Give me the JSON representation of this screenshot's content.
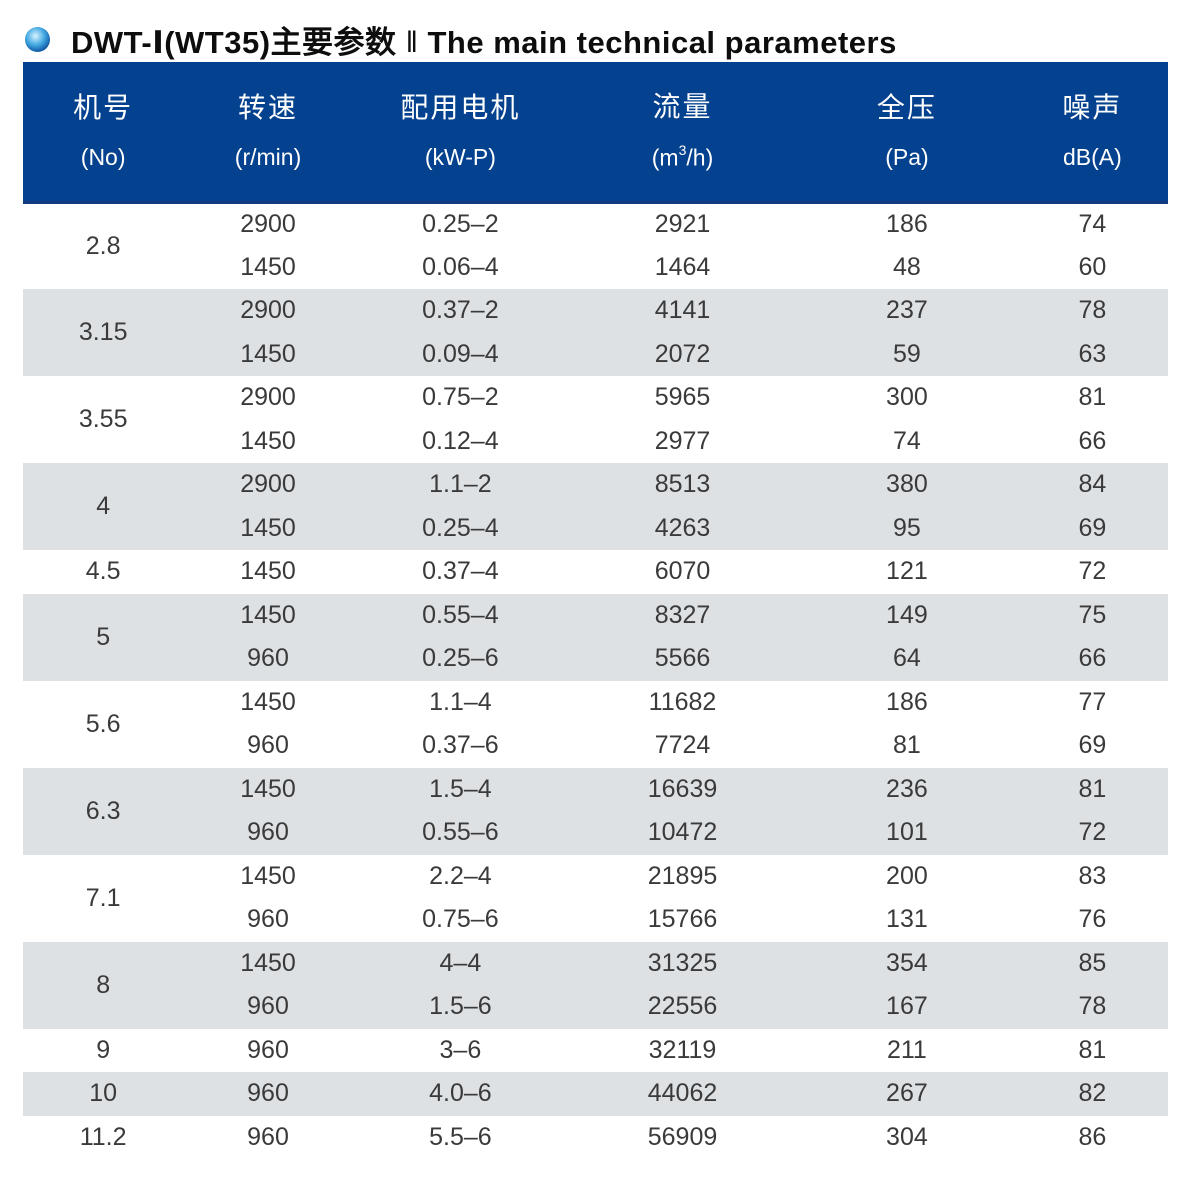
{
  "title": {
    "model": "DWT-Ⅰ(WT35)主要参数",
    "separator": "‖",
    "english": "The main technical parameters"
  },
  "table": {
    "columns": [
      {
        "zh": "机号",
        "unit": "(No)"
      },
      {
        "zh": "转速",
        "unit": "(r/min)"
      },
      {
        "zh": "配用电机",
        "unit": "(kW-P)"
      },
      {
        "zh": "流量",
        "unit_prefix": "(m",
        "unit_sup": "3",
        "unit_suffix": "/h)"
      },
      {
        "zh": "全压",
        "unit": "(Pa)"
      },
      {
        "zh": "噪声",
        "unit": "dB(A)"
      }
    ],
    "groups": [
      {
        "no": "2.8",
        "rows": [
          [
            "2900",
            "0.25–2",
            "2921",
            "186",
            "74"
          ],
          [
            "1450",
            "0.06–4",
            "1464",
            "48",
            "60"
          ]
        ]
      },
      {
        "no": "3.15",
        "rows": [
          [
            "2900",
            "0.37–2",
            "4141",
            "237",
            "78"
          ],
          [
            "1450",
            "0.09–4",
            "2072",
            "59",
            "63"
          ]
        ]
      },
      {
        "no": "3.55",
        "rows": [
          [
            "2900",
            "0.75–2",
            "5965",
            "300",
            "81"
          ],
          [
            "1450",
            "0.12–4",
            "2977",
            "74",
            "66"
          ]
        ]
      },
      {
        "no": "4",
        "rows": [
          [
            "2900",
            "1.1–2",
            "8513",
            "380",
            "84"
          ],
          [
            "1450",
            "0.25–4",
            "4263",
            "95",
            "69"
          ]
        ]
      },
      {
        "no": "4.5",
        "rows": [
          [
            "1450",
            "0.37–4",
            "6070",
            "121",
            "72"
          ]
        ]
      },
      {
        "no": "5",
        "rows": [
          [
            "1450",
            "0.55–4",
            "8327",
            "149",
            "75"
          ],
          [
            "960",
            "0.25–6",
            "5566",
            "64",
            "66"
          ]
        ]
      },
      {
        "no": "5.6",
        "rows": [
          [
            "1450",
            "1.1–4",
            "11682",
            "186",
            "77"
          ],
          [
            "960",
            "0.37–6",
            "7724",
            "81",
            "69"
          ]
        ]
      },
      {
        "no": "6.3",
        "rows": [
          [
            "1450",
            "1.5–4",
            "16639",
            "236",
            "81"
          ],
          [
            "960",
            "0.55–6",
            "10472",
            "101",
            "72"
          ]
        ]
      },
      {
        "no": "7.1",
        "rows": [
          [
            "1450",
            "2.2–4",
            "21895",
            "200",
            "83"
          ],
          [
            "960",
            "0.75–6",
            "15766",
            "131",
            "76"
          ]
        ]
      },
      {
        "no": "8",
        "rows": [
          [
            "1450",
            "4–4",
            "31325",
            "354",
            "85"
          ],
          [
            "960",
            "1.5–6",
            "22556",
            "167",
            "78"
          ]
        ]
      },
      {
        "no": "9",
        "rows": [
          [
            "960",
            "3–6",
            "32119",
            "211",
            "81"
          ]
        ]
      },
      {
        "no": "10",
        "rows": [
          [
            "960",
            "4.0–6",
            "44062",
            "267",
            "82"
          ]
        ]
      },
      {
        "no": "11.2",
        "rows": [
          [
            "960",
            "5.5–6",
            "56909",
            "304",
            "86"
          ]
        ]
      }
    ]
  },
  "colors": {
    "header_bg": "#04418e",
    "header_edge": "#123a7c",
    "row_alt_bg": "#dde1e4",
    "row_bg": "#ffffff",
    "data_text": "#3a3a3a",
    "header_text": "#ffffff",
    "bullet_inner": "#d9f3ff",
    "bullet_mid": "#43a9e2",
    "bullet_outer": "#0a4f9e"
  }
}
